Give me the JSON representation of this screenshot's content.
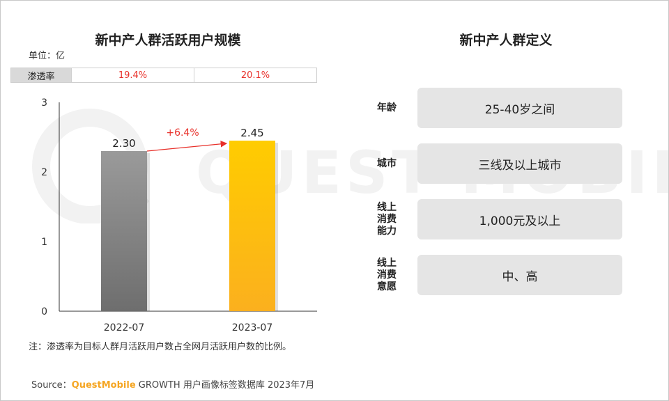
{
  "left_title": "新中产人群活跃用户规模",
  "right_title": "新中产人群定义",
  "unit_label": "单位：亿",
  "penetration": {
    "header": "渗透率",
    "values": [
      "19.4%",
      "20.1%"
    ]
  },
  "watermark": "QUEST MOBILE",
  "chart_data": {
    "type": "bar",
    "categories": [
      "2022-07",
      "2023-07"
    ],
    "values": [
      2.3,
      2.45
    ],
    "value_labels": [
      "2.30",
      "2.45"
    ],
    "yticks": [
      "0",
      "1",
      "2",
      "3"
    ],
    "ylim": [
      0,
      3
    ],
    "growth_annotation": "+6.4%",
    "bar_colors": [
      "#8a8a8a",
      "#ffc107"
    ],
    "annotation_color": "#e8302a",
    "grid": false
  },
  "definitions": [
    {
      "label": "年龄",
      "value": "25-40岁之间"
    },
    {
      "label": "城市",
      "value": "三线及以上城市"
    },
    {
      "label": "线上\n消费\n能力",
      "value": "1,000元及以上"
    },
    {
      "label": "线上\n消费\n意愿",
      "value": "中、高"
    }
  ],
  "note": "注：渗透率为目标人群月活跃用户数占全网月活跃用户数的比例。",
  "source": {
    "prefix": "Source：",
    "brand": "QuestMobile",
    "suffix": " GROWTH 用户画像标签数据库 2023年7月"
  }
}
